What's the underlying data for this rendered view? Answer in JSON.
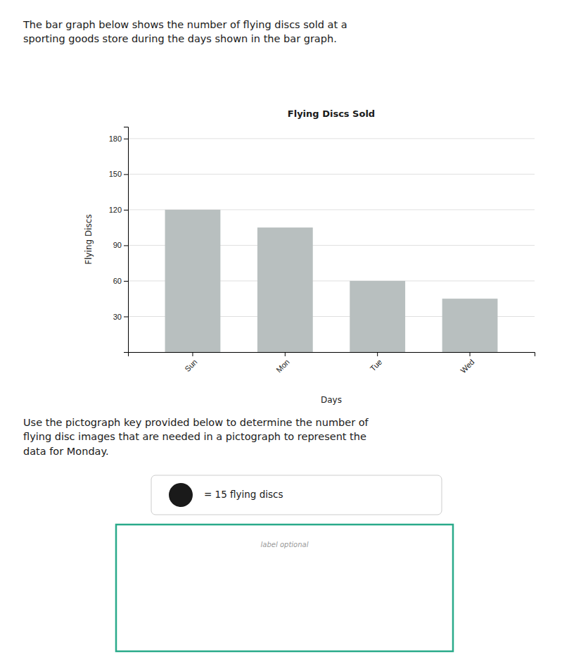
{
  "intro": "The bar graph below shows the number of flying discs sold at a\nsporting goods store during the days shown in the bar graph.",
  "chart_data": {
    "type": "bar",
    "title": "Flying Discs Sold",
    "x_label": "Days",
    "y_label": "Flying Discs",
    "categories": [
      "Sun",
      "Mon",
      "Tue",
      "Wed"
    ],
    "values": [
      120,
      105,
      60,
      45
    ],
    "color": "#b8bfbf",
    "ylim": [
      0,
      190
    ],
    "yticks": [
      30,
      60,
      90,
      120,
      150,
      180
    ],
    "grid": true
  },
  "question": "Use the pictograph key provided below to determine the number of\nflying disc images that are needed in a pictograph to represent the\ndata for Monday.",
  "key": "= 15 flying discs",
  "answer_label": "label optional"
}
